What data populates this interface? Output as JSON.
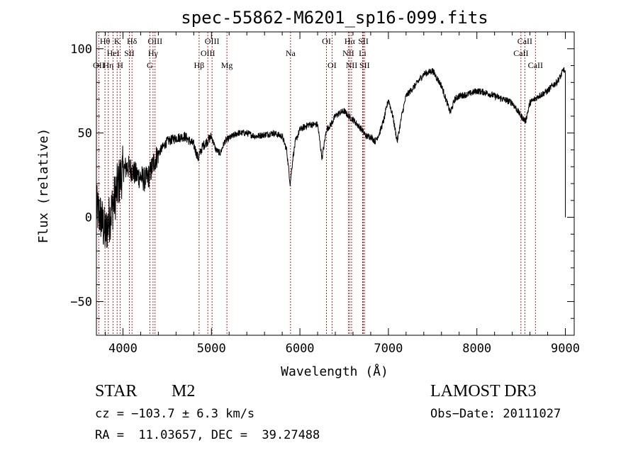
{
  "chart_data": {
    "type": "line",
    "title": "spec-55862-M6201_sp16-099.fits",
    "xlabel": "Wavelength (Å)",
    "ylabel": "Flux (relative)",
    "xlim": [
      3700,
      9100
    ],
    "ylim": [
      -70,
      110
    ],
    "xticks": [
      4000,
      5000,
      6000,
      7000,
      8000,
      9000
    ],
    "yticks": [
      -50,
      0,
      50,
      100
    ],
    "xtick_labels": [
      "4000",
      "5000",
      "6000",
      "7000",
      "8000",
      "9000"
    ],
    "ytick_labels": [
      "−50",
      "0",
      "50",
      "100"
    ],
    "line_color": "#000000",
    "marker_color": "#c00000",
    "spectrum_anchors": {
      "x": [
        3700,
        3750,
        3800,
        3850,
        3900,
        3950,
        4000,
        4050,
        4100,
        4150,
        4200,
        4250,
        4300,
        4350,
        4400,
        4500,
        4600,
        4700,
        4800,
        4850,
        4900,
        4950,
        5000,
        5050,
        5100,
        5150,
        5200,
        5300,
        5400,
        5500,
        5600,
        5700,
        5800,
        5850,
        5890,
        5920,
        5950,
        6000,
        6100,
        6200,
        6250,
        6300,
        6350,
        6400,
        6450,
        6500,
        6550,
        6600,
        6650,
        6700,
        6750,
        6800,
        6850,
        6900,
        6950,
        7000,
        7050,
        7100,
        7150,
        7200,
        7300,
        7400,
        7500,
        7600,
        7650,
        7700,
        7750,
        7800,
        7900,
        8000,
        8100,
        8200,
        8300,
        8400,
        8500,
        8550,
        8600,
        8650,
        8700,
        8800,
        8850,
        8900,
        8950,
        8980,
        9000
      ],
      "y": [
        5,
        0,
        -10,
        0,
        10,
        20,
        28,
        30,
        28,
        25,
        24,
        22,
        25,
        33,
        38,
        45,
        47,
        48,
        43,
        35,
        42,
        45,
        48,
        40,
        38,
        45,
        47,
        50,
        50,
        48,
        49,
        50,
        48,
        40,
        20,
        35,
        45,
        52,
        55,
        55,
        35,
        52,
        55,
        60,
        62,
        63,
        60,
        58,
        55,
        52,
        48,
        48,
        45,
        50,
        58,
        70,
        60,
        45,
        60,
        72,
        78,
        85,
        87,
        78,
        70,
        62,
        70,
        72,
        73,
        75,
        74,
        72,
        70,
        68,
        60,
        57,
        68,
        70,
        72,
        75,
        78,
        80,
        84,
        88,
        85
      ]
    },
    "spectral_lines": [
      {
        "label": "OII",
        "x": 3727,
        "row": 3
      },
      {
        "label": "Hθ",
        "x": 3797,
        "row": 1
      },
      {
        "label": "Hη",
        "x": 3835,
        "row": 3
      },
      {
        "label": "HeI",
        "x": 3889,
        "row": 2
      },
      {
        "label": "K",
        "x": 3934,
        "row": 1
      },
      {
        "label": "H",
        "x": 3969,
        "row": 3
      },
      {
        "label": "SII",
        "x": 4072,
        "row": 2
      },
      {
        "label": "Hδ",
        "x": 4102,
        "row": 1
      },
      {
        "label": "G",
        "x": 4304,
        "row": 3
      },
      {
        "label": "Hγ",
        "x": 4340,
        "row": 2
      },
      {
        "label": "OIII",
        "x": 4363,
        "row": 1
      },
      {
        "label": "Hβ",
        "x": 4861,
        "row": 3
      },
      {
        "label": "OIII",
        "x": 4959,
        "row": 2
      },
      {
        "label": "OIII",
        "x": 5007,
        "row": 1
      },
      {
        "label": "Mg",
        "x": 5175,
        "row": 3
      },
      {
        "label": "Na",
        "x": 5894,
        "row": 2
      },
      {
        "label": "OI",
        "x": 6300,
        "row": 1
      },
      {
        "label": "OI",
        "x": 6363,
        "row": 3
      },
      {
        "label": "NII",
        "x": 6548,
        "row": 2
      },
      {
        "label": "Hα",
        "x": 6563,
        "row": 1
      },
      {
        "label": "NII",
        "x": 6584,
        "row": 3
      },
      {
        "label": "Li",
        "x": 6708,
        "row": 2
      },
      {
        "label": "SII",
        "x": 6717,
        "row": 1
      },
      {
        "label": "SII",
        "x": 6731,
        "row": 3
      },
      {
        "label": "CaII",
        "x": 8498,
        "row": 2
      },
      {
        "label": "CaII",
        "x": 8542,
        "row": 1
      },
      {
        "label": "CaII",
        "x": 8662,
        "row": 3
      }
    ]
  },
  "info": {
    "class": "STAR",
    "subclass": "M2",
    "survey": "LAMOST DR3",
    "cz": "cz = −103.7 ± 6.3 km/s",
    "obs_date": "Obs−Date: 20111027",
    "coords": "RA =  11.03657, DEC =  39.27488"
  }
}
